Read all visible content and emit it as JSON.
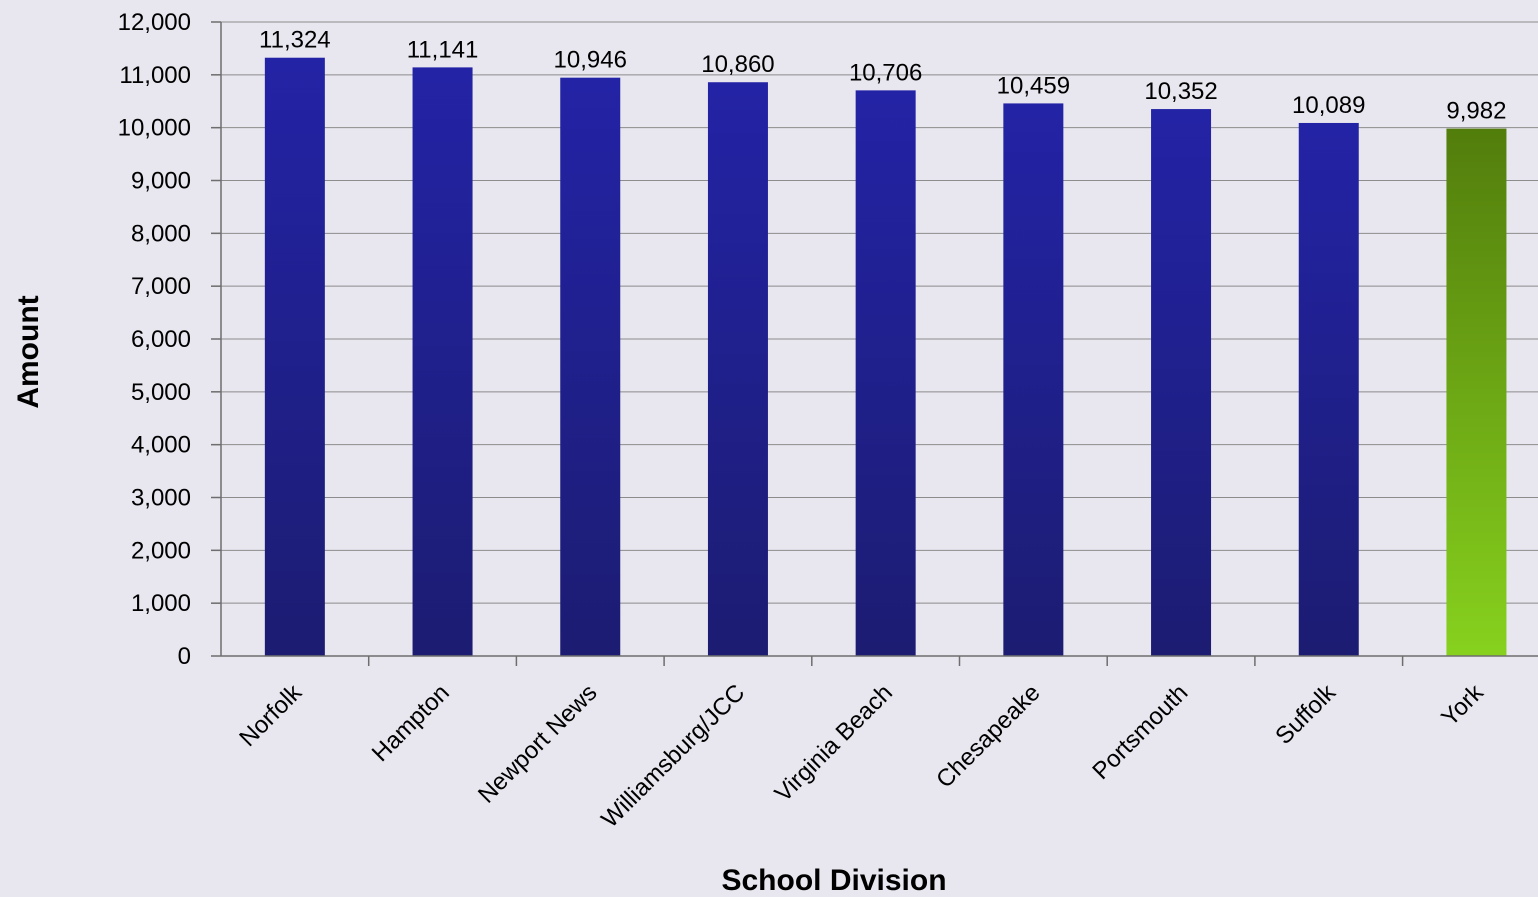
{
  "chart_data": {
    "type": "bar",
    "title": "",
    "xlabel": "School Division",
    "ylabel": "Amount",
    "categories": [
      "Norfolk",
      "Hampton",
      "Newport News",
      "Williamsburg/JCC",
      "Virginia Beach",
      "Chesapeake",
      "Portsmouth",
      "Suffolk",
      "York"
    ],
    "values": [
      11324,
      11141,
      10946,
      10860,
      10706,
      10459,
      10352,
      10089,
      9982
    ],
    "value_labels": [
      "11,324",
      "11,141",
      "10,946",
      "10,860",
      "10,706",
      "10,459",
      "10,352",
      "10,089",
      "9,982"
    ],
    "ylim": [
      0,
      12000
    ],
    "yticks": [
      0,
      1000,
      2000,
      3000,
      4000,
      5000,
      6000,
      7000,
      8000,
      9000,
      10000,
      11000,
      12000
    ],
    "ytick_labels": [
      "0",
      "1,000",
      "2,000",
      "3,000",
      "4,000",
      "5,000",
      "6,000",
      "7,000",
      "8,000",
      "9,000",
      "10,000",
      "11,000",
      "12,000"
    ],
    "grid": true,
    "legend": "none",
    "colors": {
      "default_bar_top": "#2323a6",
      "default_bar_bottom": "#1c1c72",
      "highlight_bar_top": "#527d0c",
      "highlight_bar_bottom": "#87d11e",
      "background": "#e8e6ee"
    },
    "highlight_category": "York"
  }
}
